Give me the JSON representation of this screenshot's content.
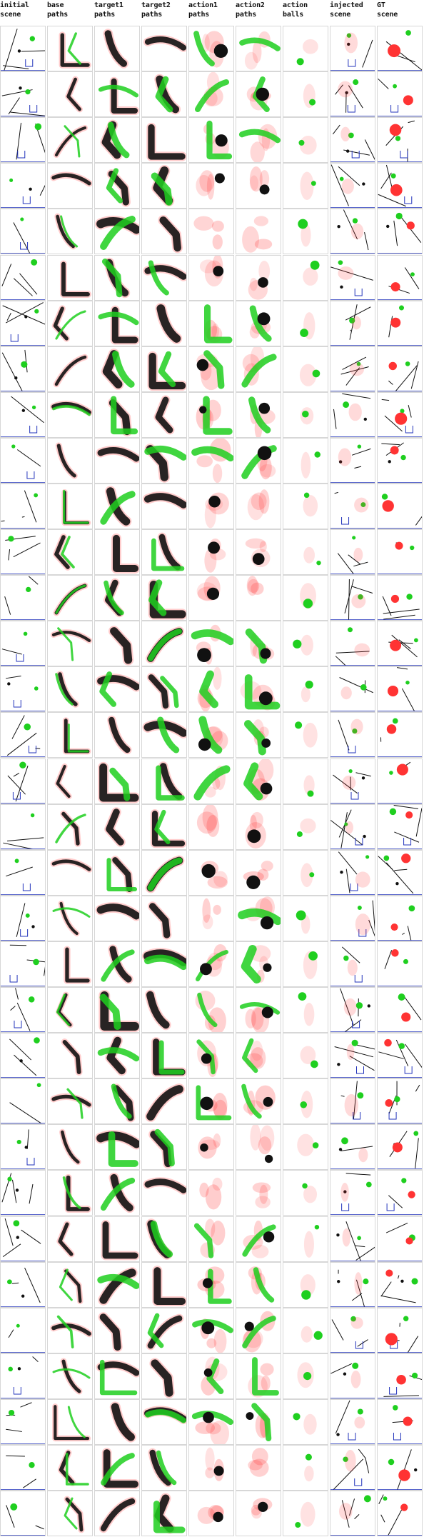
{
  "headers": [
    "initial\nscene",
    "base\npaths",
    "target1\npaths",
    "target2\npaths",
    "action1\npaths",
    "action2\npaths",
    "action\nballs",
    "injected\nscene",
    "GT\nscene"
  ],
  "row_count": 33,
  "colors": {
    "green": "#1fcf1f",
    "red": "#ff3333",
    "blue": "#2233bb",
    "dark": "#111111",
    "border": "#d7d7d7"
  }
}
